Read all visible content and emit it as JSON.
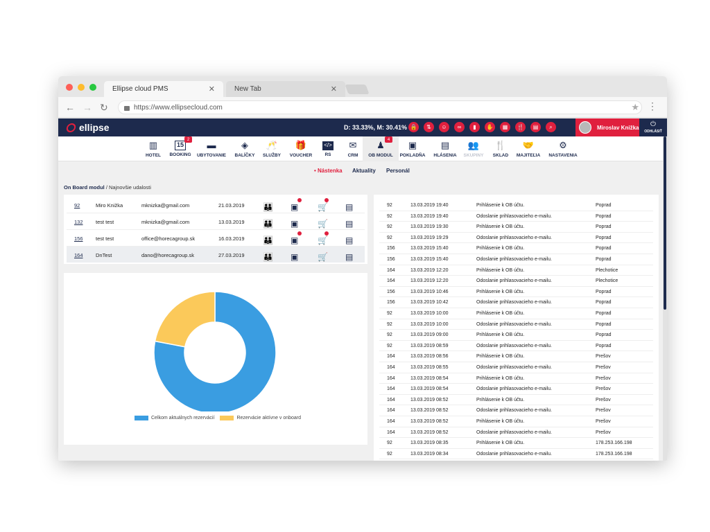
{
  "browser": {
    "tabs": [
      {
        "label": "Ellipse cloud PMS",
        "active": true
      },
      {
        "label": "New Tab",
        "active": false
      }
    ],
    "url": "https://www.ellipsecloud.com",
    "lights": [
      "#fe5f57",
      "#febc2e",
      "#28c840"
    ]
  },
  "header": {
    "logo": "ellipse",
    "stats": "D: 33.33%, M: 30.41%",
    "icons": [
      "lock-icon",
      "transfer-icon",
      "face-icon",
      "binoculars-icon",
      "bar-chart-icon",
      "hand-icon",
      "calendar-icon",
      "food-icon",
      "document-icon",
      "search-icon"
    ],
    "user_name": "Miroslav Knižka",
    "logout_label": "ODHLÁSIŤ"
  },
  "nav": {
    "items": [
      {
        "label": "HOTEL",
        "icon": "hotel-icon",
        "glyph": "▥"
      },
      {
        "label": "BOOKING",
        "icon": "calendar-icon",
        "glyph": "15",
        "badge": "2"
      },
      {
        "label": "UBYTOVANIE",
        "icon": "bed-icon",
        "glyph": "▬"
      },
      {
        "label": "BALÍČKY",
        "icon": "package-icon",
        "glyph": "◈"
      },
      {
        "label": "SLUŽBY",
        "icon": "glasses-icon",
        "glyph": "🥂"
      },
      {
        "label": "VOUCHER",
        "icon": "gift-icon",
        "glyph": "🎁"
      },
      {
        "label": "RS",
        "icon": "code-icon",
        "glyph": "</>"
      },
      {
        "label": "CRM",
        "icon": "mail-icon",
        "glyph": "✉"
      },
      {
        "label": "OB MODUL",
        "icon": "person-icon",
        "glyph": "♟",
        "badge": "4",
        "active": true
      },
      {
        "label": "POKLADŇA",
        "icon": "wallet-icon",
        "glyph": "▣"
      },
      {
        "label": "HLÁSENIA",
        "icon": "clipboard-icon",
        "glyph": "▤"
      },
      {
        "label": "SKUPINY",
        "icon": "group-icon",
        "glyph": "👥",
        "disabled": true
      },
      {
        "label": "SKLAD",
        "icon": "cutlery-icon",
        "glyph": "🍴"
      },
      {
        "label": "MAJITEĽIA",
        "icon": "handshake-icon",
        "glyph": "🤝"
      },
      {
        "label": "NASTAVENIA",
        "icon": "gears-icon",
        "glyph": "⚙"
      }
    ]
  },
  "subtabs": [
    {
      "label": "• Nástenka",
      "active": true
    },
    {
      "label": "Aktuality"
    },
    {
      "label": "Personál"
    }
  ],
  "breadcrumb": {
    "module": "On Board modul",
    "page": "/ Najnovšie udalosti"
  },
  "reservations": [
    {
      "id": "92",
      "name": "Miro Knižka",
      "email": "mknizka@gmail.com",
      "date": "21.03.2019",
      "wallet_alert": true,
      "cart_alert": true
    },
    {
      "id": "132",
      "name": "test test",
      "email": "mknizka@gmail.com",
      "date": "13.03.2019",
      "wallet_alert": false,
      "cart_alert": false
    },
    {
      "id": "156",
      "name": "test test",
      "email": "office@horecagroup.sk",
      "date": "16.03.2019",
      "wallet_alert": true,
      "cart_alert": true
    },
    {
      "id": "164",
      "name": "DnTest",
      "email": "dano@horecagroup.sk",
      "date": "27.03.2019",
      "wallet_alert": false,
      "cart_alert": false
    }
  ],
  "chart_data": {
    "type": "pie",
    "categories": [
      "Celkom aktuálnych rezervácií",
      "Rezervácie aktívne v onboard"
    ],
    "values": [
      78,
      22
    ],
    "colors": [
      "#3a9de1",
      "#fbc95a"
    ],
    "legend": "bottom"
  },
  "events": [
    {
      "id": "92",
      "time": "13.03.2019 19:40",
      "event": "Prihlásenie k OB účtu.",
      "place": "Poprad"
    },
    {
      "id": "92",
      "time": "13.03.2019 19:40",
      "event": "Odoslanie prihlasovacieho e-mailu.",
      "place": "Poprad"
    },
    {
      "id": "92",
      "time": "13.03.2019 19:30",
      "event": "Prihlásenie k OB účtu.",
      "place": "Poprad"
    },
    {
      "id": "92",
      "time": "13.03.2019 19:29",
      "event": "Odoslanie prihlasovacieho e-mailu.",
      "place": "Poprad"
    },
    {
      "id": "156",
      "time": "13.03.2019 15:40",
      "event": "Prihlásenie k OB účtu.",
      "place": "Poprad"
    },
    {
      "id": "156",
      "time": "13.03.2019 15:40",
      "event": "Odoslanie prihlasovacieho e-mailu.",
      "place": "Poprad"
    },
    {
      "id": "164",
      "time": "13.03.2019 12:20",
      "event": "Prihlásenie k OB účtu.",
      "place": "Plechotice"
    },
    {
      "id": "164",
      "time": "13.03.2019 12:20",
      "event": "Odoslanie prihlasovacieho e-mailu.",
      "place": "Plechotice"
    },
    {
      "id": "156",
      "time": "13.03.2019 10:46",
      "event": "Prihlásenie k OB účtu.",
      "place": "Poprad"
    },
    {
      "id": "156",
      "time": "13.03.2019 10:42",
      "event": "Odoslanie prihlasovacieho e-mailu.",
      "place": "Poprad"
    },
    {
      "id": "92",
      "time": "13.03.2019 10:00",
      "event": "Prihlásenie k OB účtu.",
      "place": "Poprad"
    },
    {
      "id": "92",
      "time": "13.03.2019 10:00",
      "event": "Odoslanie prihlasovacieho e-mailu.",
      "place": "Poprad"
    },
    {
      "id": "92",
      "time": "13.03.2019 09:00",
      "event": "Prihlásenie k OB účtu.",
      "place": "Poprad"
    },
    {
      "id": "92",
      "time": "13.03.2019 08:59",
      "event": "Odoslanie prihlasovacieho e-mailu.",
      "place": "Poprad"
    },
    {
      "id": "164",
      "time": "13.03.2019 08:56",
      "event": "Prihlásenie k OB účtu.",
      "place": "Prešov"
    },
    {
      "id": "164",
      "time": "13.03.2019 08:55",
      "event": "Odoslanie prihlasovacieho e-mailu.",
      "place": "Prešov"
    },
    {
      "id": "164",
      "time": "13.03.2019 08:54",
      "event": "Prihlásenie k OB účtu.",
      "place": "Prešov"
    },
    {
      "id": "164",
      "time": "13.03.2019 08:54",
      "event": "Odoslanie prihlasovacieho e-mailu.",
      "place": "Prešov"
    },
    {
      "id": "164",
      "time": "13.03.2019 08:52",
      "event": "Prihlásenie k OB účtu.",
      "place": "Prešov"
    },
    {
      "id": "164",
      "time": "13.03.2019 08:52",
      "event": "Odoslanie prihlasovacieho e-mailu.",
      "place": "Prešov"
    },
    {
      "id": "164",
      "time": "13.03.2019 08:52",
      "event": "Prihlásenie k OB účtu.",
      "place": "Prešov"
    },
    {
      "id": "164",
      "time": "13.03.2019 08:52",
      "event": "Odoslanie prihlasovacieho e-mailu.",
      "place": "Prešov"
    },
    {
      "id": "92",
      "time": "13.03.2019 08:35",
      "event": "Prihlásenie k OB účtu.",
      "place": "178.253.166.198"
    },
    {
      "id": "92",
      "time": "13.03.2019 08:34",
      "event": "Odoslanie prihlasovacieho e-mailu.",
      "place": "178.253.166.198"
    }
  ]
}
